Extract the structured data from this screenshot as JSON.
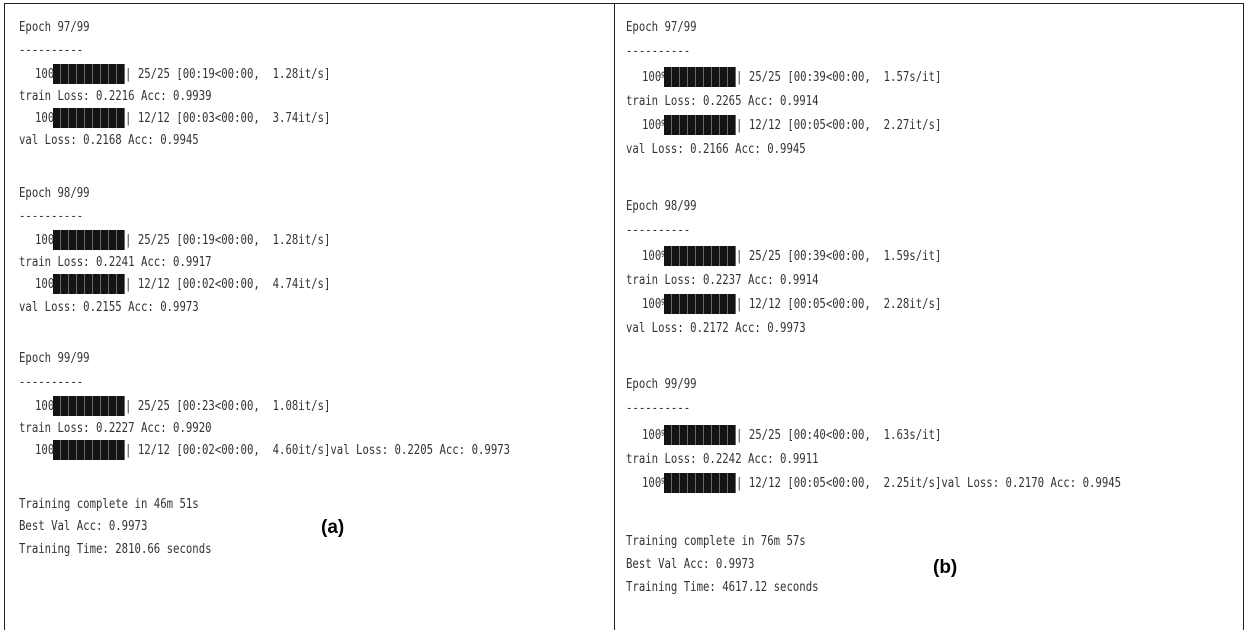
{
  "panel_a": {
    "caption": "(a)",
    "epochs": [
      {
        "title": "Epoch 97/99",
        "sep": "----------",
        "train_prog": {
          "pct": "100%|",
          "stats": "| 25/25 [00:19<00:00,  1.28it/s]"
        },
        "train_line": "train Loss: 0.2216 Acc: 0.9939",
        "val_prog": {
          "pct": "100%|",
          "stats": "| 12/12 [00:03<00:00,  3.74it/s]"
        },
        "val_line": "val Loss: 0.2168 Acc: 0.9945"
      },
      {
        "title": "Epoch 98/99",
        "sep": "----------",
        "train_prog": {
          "pct": "100%|",
          "stats": "| 25/25 [00:19<00:00,  1.28it/s]"
        },
        "train_line": "train Loss: 0.2241 Acc: 0.9917",
        "val_prog": {
          "pct": "100%|",
          "stats": "| 12/12 [00:02<00:00,  4.74it/s]"
        },
        "val_line": "val Loss: 0.2155 Acc: 0.9973"
      },
      {
        "title": "Epoch 99/99",
        "sep": "----------",
        "train_prog": {
          "pct": "100%|",
          "stats": "| 25/25 [00:23<00:00,  1.08it/s]"
        },
        "train_line": "train Loss: 0.2227 Acc: 0.9920",
        "val_prog": {
          "pct": "100%|",
          "stats": "| 12/12 [00:02<00:00,  4.60it/s]val Loss: 0.2205 Acc: 0.9973"
        }
      }
    ],
    "summary": {
      "complete": "Training complete in 46m 51s",
      "best": "Best Val Acc: 0.9973",
      "time": "Training Time: 2810.66 seconds"
    }
  },
  "panel_b": {
    "caption": "(b)",
    "epochs": [
      {
        "title": "Epoch 97/99",
        "sep": "----------",
        "train_prog": {
          "pct": "100%|",
          "stats": "| 25/25 [00:39<00:00,  1.57s/it]"
        },
        "train_line": "train Loss: 0.2265 Acc: 0.9914",
        "val_prog": {
          "pct": "100%|",
          "stats": "| 12/12 [00:05<00:00,  2.27it/s]"
        },
        "val_line": "val Loss: 0.2166 Acc: 0.9945"
      },
      {
        "title": "Epoch 98/99",
        "sep": "----------",
        "train_prog": {
          "pct": "100%|",
          "stats": "| 25/25 [00:39<00:00,  1.59s/it]"
        },
        "train_line": "train Loss: 0.2237 Acc: 0.9914",
        "val_prog": {
          "pct": "100%|",
          "stats": "| 12/12 [00:05<00:00,  2.28it/s]"
        },
        "val_line": "val Loss: 0.2172 Acc: 0.9973"
      },
      {
        "title": "Epoch 99/99",
        "sep": "----------",
        "train_prog": {
          "pct": "100%|",
          "stats": "| 25/25 [00:40<00:00,  1.63s/it]"
        },
        "train_line": "train Loss: 0.2242 Acc: 0.9911",
        "val_prog": {
          "pct": "100%|",
          "stats": "| 12/12 [00:05<00:00,  2.25it/s]val Loss: 0.2170 Acc: 0.9945"
        }
      }
    ],
    "summary": {
      "complete": "Training complete in 76m 57s",
      "best": "Best Val Acc: 0.9973",
      "time": "Training Time: 4617.12 seconds"
    }
  }
}
